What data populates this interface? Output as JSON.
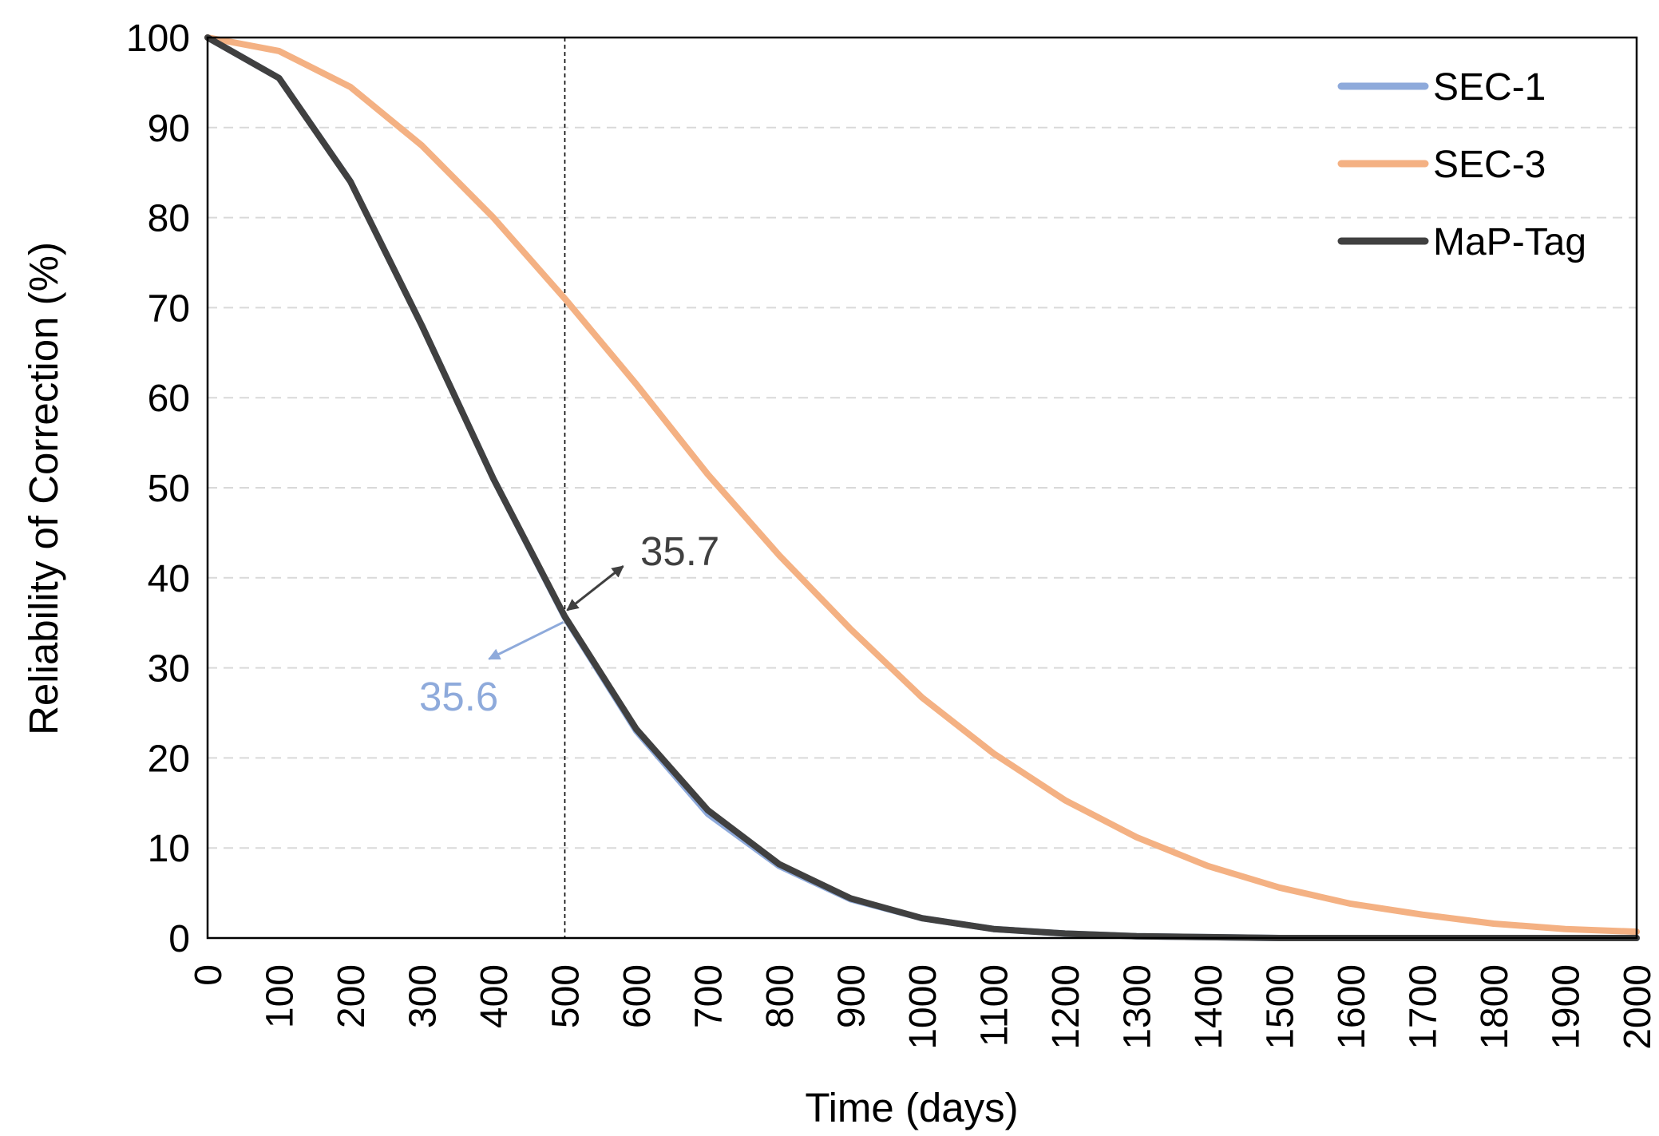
{
  "chart_data": {
    "type": "line",
    "title": "",
    "xlabel": "Time (days)",
    "ylabel": "Reliability of Correction (%)",
    "x": [
      0,
      100,
      200,
      300,
      400,
      500,
      600,
      700,
      800,
      900,
      1000,
      1100,
      1200,
      1300,
      1400,
      1500,
      1600,
      1700,
      1800,
      1900,
      2000
    ],
    "x_tick_labels": [
      "0",
      "100",
      "200",
      "300",
      "400",
      "500",
      "600",
      "700",
      "800",
      "900",
      "1000",
      "1100",
      "1200",
      "1300",
      "1400",
      "1500",
      "1600",
      "1700",
      "1800",
      "1900",
      "2000"
    ],
    "y_tick_labels": [
      "0",
      "10",
      "20",
      "30",
      "40",
      "50",
      "60",
      "70",
      "80",
      "90",
      "100"
    ],
    "xlim": [
      0,
      2000
    ],
    "ylim": [
      0,
      100
    ],
    "grid": "horizontal dashed",
    "legend_position": "top-right",
    "reference_line": {
      "x": 500,
      "style": "dashed"
    },
    "series": [
      {
        "name": "SEC-1",
        "color": "#8eaadb",
        "values": [
          100,
          95.5,
          84,
          68,
          51,
          35.6,
          23,
          13.8,
          8,
          4.3,
          2.2,
          1,
          0.5,
          0.2,
          0.1,
          0,
          0,
          0,
          0,
          0,
          0
        ]
      },
      {
        "name": "SEC-3",
        "color": "#f4b183",
        "values": [
          100,
          98.5,
          94.5,
          88,
          80,
          71,
          61.5,
          51.5,
          42.5,
          34.3,
          26.7,
          20.5,
          15.3,
          11.2,
          8,
          5.6,
          3.8,
          2.6,
          1.6,
          1,
          0.7
        ]
      },
      {
        "name": "MaP-Tag",
        "color": "#404040",
        "values": [
          100,
          95.5,
          84,
          68,
          51,
          35.7,
          23.2,
          14.2,
          8.2,
          4.4,
          2.2,
          1,
          0.5,
          0.2,
          0.1,
          0,
          0,
          0,
          0,
          0,
          0
        ]
      }
    ],
    "annotations": [
      {
        "text": "35.7",
        "series": "MaP-Tag",
        "color": "#404040"
      },
      {
        "text": "35.6",
        "series": "SEC-1",
        "color": "#8eaadb"
      }
    ]
  }
}
